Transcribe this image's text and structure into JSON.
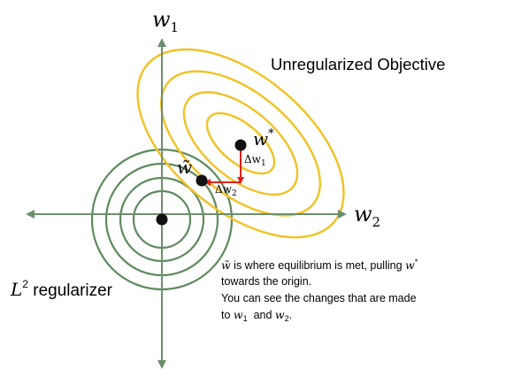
{
  "colors": {
    "axis": "#6b8f6b",
    "objective": "#f2c224",
    "regularizer": "#5e8a5e",
    "arrow": "#e0201b",
    "point": "#111111"
  },
  "axes": {
    "vertical_label": "w",
    "vertical_sub": "1",
    "horizontal_label": "w",
    "horizontal_sub": "2"
  },
  "objective_label": "Unregularized Objective",
  "regularizer_label": {
    "base": "L",
    "sup": "2",
    "rest": " regularizer"
  },
  "points": {
    "w_star": {
      "base": "w",
      "sup": "*"
    },
    "w_tilde": {
      "base": "w̃"
    }
  },
  "deltas": {
    "dw1": {
      "base": "Δw",
      "sub": "1"
    },
    "dw2": {
      "base": "Δw",
      "sub": "2"
    }
  },
  "note": {
    "line1_sym": "w̃",
    "line1_text": " is where equilibrium is met, pulling ",
    "line1_sym2": "w",
    "line1_sup": "*",
    "line2": "towards the origin.",
    "line3": "You can see the changes that are made",
    "line4_pre": "to ",
    "line4_w1": "w",
    "line4_w1_sub": "1",
    "line4_mid": "  and ",
    "line4_w2": "w",
    "line4_w2_sub": "2",
    "line4_end": "."
  }
}
